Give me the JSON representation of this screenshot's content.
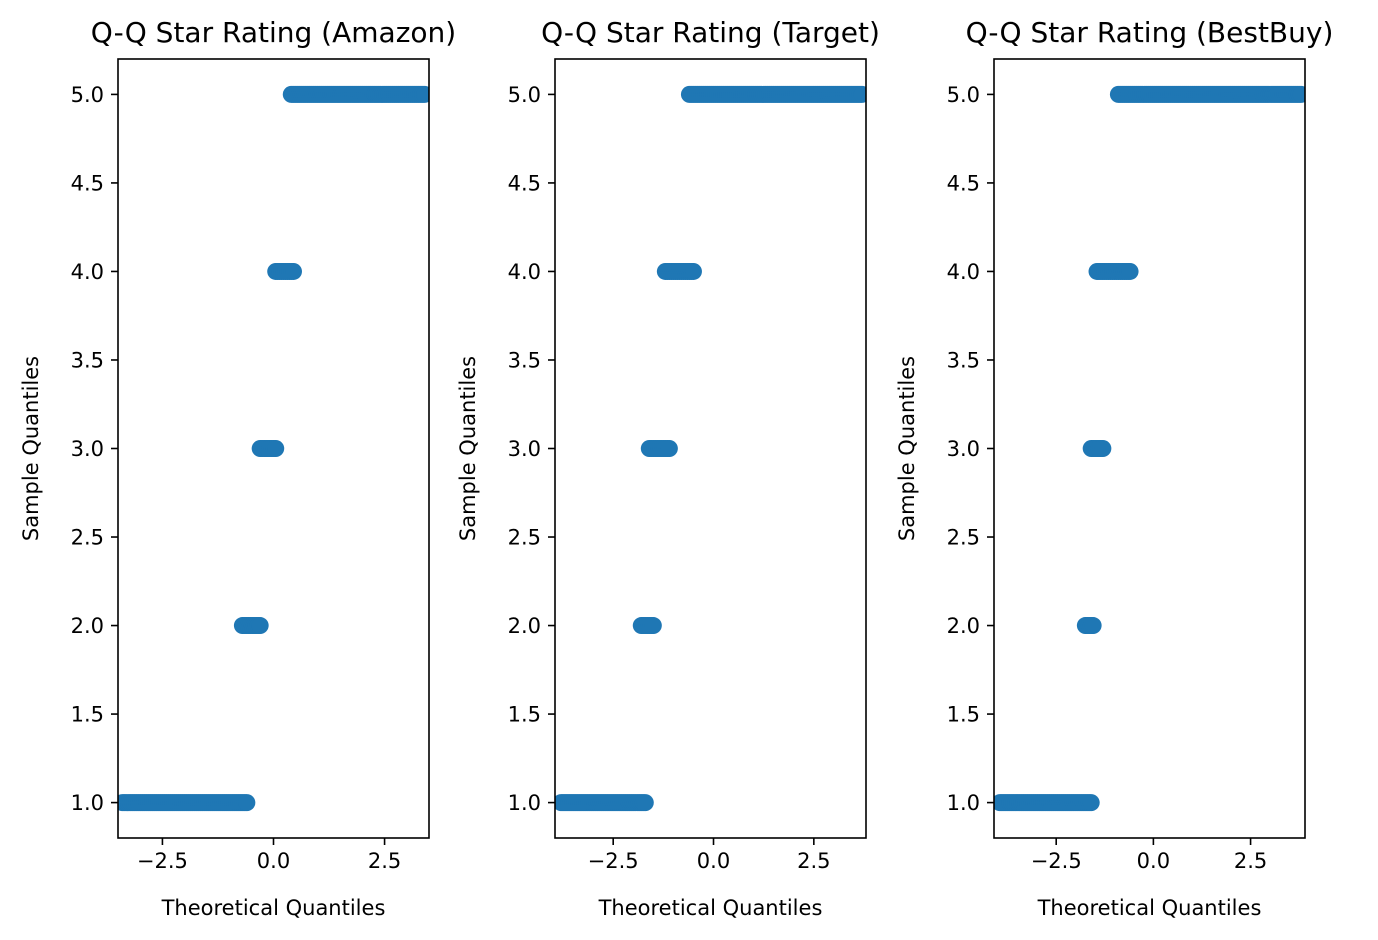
{
  "chart_data": [
    {
      "type": "scatter",
      "title": "Q-Q Star Rating (Amazon)",
      "xlabel": "Theoretical Quantiles",
      "ylabel": "Sample Quantiles",
      "xlim": [
        -3.5,
        3.5
      ],
      "ylim": [
        0.8,
        5.2
      ],
      "xticks": [
        -2.5,
        0.0,
        2.5
      ],
      "xtick_labels": [
        "−2.5",
        "0.0",
        "2.5"
      ],
      "yticks": [
        1.0,
        1.5,
        2.0,
        2.5,
        3.0,
        3.5,
        4.0,
        4.5,
        5.0
      ],
      "ytick_labels": [
        "1.0",
        "1.5",
        "2.0",
        "2.5",
        "3.0",
        "3.5",
        "4.0",
        "4.5",
        "5.0"
      ],
      "grid": false,
      "point_color": "#1f77b4",
      "clusters": [
        {
          "y": 1.0,
          "x_start": -3.4,
          "x_end": -0.6
        },
        {
          "y": 2.0,
          "x_start": -0.7,
          "x_end": -0.3
        },
        {
          "y": 3.0,
          "x_start": -0.3,
          "x_end": 0.05
        },
        {
          "y": 4.0,
          "x_start": 0.05,
          "x_end": 0.45
        },
        {
          "y": 5.0,
          "x_start": 0.4,
          "x_end": 3.4
        }
      ]
    },
    {
      "type": "scatter",
      "title": "Q-Q Star Rating (Target)",
      "xlabel": "Theoretical Quantiles",
      "ylabel": "Sample Quantiles",
      "xlim": [
        -3.95,
        3.8
      ],
      "ylim": [
        0.8,
        5.2
      ],
      "xticks": [
        -2.5,
        0.0,
        2.5
      ],
      "xtick_labels": [
        "−2.5",
        "0.0",
        "2.5"
      ],
      "yticks": [
        1.0,
        1.5,
        2.0,
        2.5,
        3.0,
        3.5,
        4.0,
        4.5,
        5.0
      ],
      "ytick_labels": [
        "1.0",
        "1.5",
        "2.0",
        "2.5",
        "3.0",
        "3.5",
        "4.0",
        "4.5",
        "5.0"
      ],
      "grid": false,
      "point_color": "#1f77b4",
      "clusters": [
        {
          "y": 1.0,
          "x_start": -3.8,
          "x_end": -1.7
        },
        {
          "y": 2.0,
          "x_start": -1.8,
          "x_end": -1.5
        },
        {
          "y": 3.0,
          "x_start": -1.6,
          "x_end": -1.1
        },
        {
          "y": 4.0,
          "x_start": -1.2,
          "x_end": -0.5
        },
        {
          "y": 5.0,
          "x_start": -0.6,
          "x_end": 3.7
        }
      ]
    },
    {
      "type": "scatter",
      "title": "Q-Q Star Rating (BestBuy)",
      "xlabel": "Theoretical Quantiles",
      "ylabel": "Sample Quantiles",
      "xlim": [
        -4.1,
        3.9
      ],
      "ylim": [
        0.8,
        5.2
      ],
      "xticks": [
        -2.5,
        0.0,
        2.5
      ],
      "xtick_labels": [
        "−2.5",
        "0.0",
        "2.5"
      ],
      "yticks": [
        1.0,
        1.5,
        2.0,
        2.5,
        3.0,
        3.5,
        4.0,
        4.5,
        5.0
      ],
      "ytick_labels": [
        "1.0",
        "1.5",
        "2.0",
        "2.5",
        "3.0",
        "3.5",
        "4.0",
        "4.5",
        "5.0"
      ],
      "grid": false,
      "point_color": "#1f77b4",
      "clusters": [
        {
          "y": 1.0,
          "x_start": -3.95,
          "x_end": -1.6
        },
        {
          "y": 2.0,
          "x_start": -1.75,
          "x_end": -1.55
        },
        {
          "y": 3.0,
          "x_start": -1.6,
          "x_end": -1.3
        },
        {
          "y": 4.0,
          "x_start": -1.45,
          "x_end": -0.6
        },
        {
          "y": 5.0,
          "x_start": -0.9,
          "x_end": 3.8
        }
      ]
    }
  ]
}
